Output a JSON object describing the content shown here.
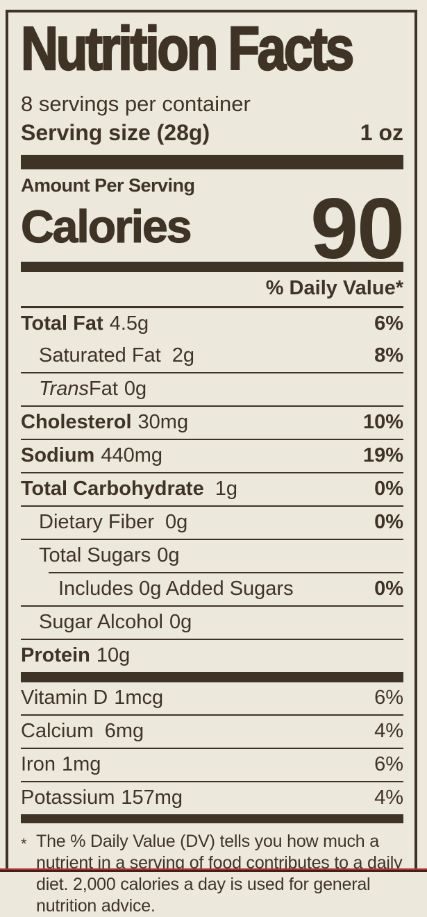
{
  "label": {
    "title": "Nutrition Facts",
    "servings_per_container": "8 servings per container",
    "serving_size": {
      "label": "Serving size (28g)",
      "value": "1 oz"
    },
    "calories": {
      "heading": "Amount Per Serving",
      "label": "Calories",
      "value": "90"
    },
    "daily_value_header": "% Daily Value*",
    "nutrients": [
      {
        "name": "Total Fat",
        "amount": "4.5g",
        "dv": "6%"
      },
      {
        "name": "Saturated Fat",
        "amount": "2g",
        "dv": "8%"
      },
      {
        "name_italic": "Trans",
        "name": "Fat",
        "amount": "0g",
        "dv": ""
      },
      {
        "name": "Cholesterol",
        "amount": "30mg",
        "dv": "10%"
      },
      {
        "name": "Sodium",
        "amount": "440mg",
        "dv": "19%"
      },
      {
        "name": "Total Carbohydrate",
        "amount": "1g",
        "dv": "0%"
      },
      {
        "name": "Dietary Fiber",
        "amount": "0g",
        "dv": "0%"
      },
      {
        "name": "Total Sugars",
        "amount": "0g",
        "dv": ""
      },
      {
        "name": "Includes 0g Added Sugars",
        "amount": "",
        "dv": "0%"
      },
      {
        "name": "Sugar Alcohol",
        "amount": "0g",
        "dv": ""
      },
      {
        "name": "Protein",
        "amount": "10g",
        "dv": ""
      }
    ],
    "vitamins": [
      {
        "name": "Vitamin D",
        "amount": "1mcg",
        "dv": "6%"
      },
      {
        "name": "Calcium",
        "amount": "6mg",
        "dv": "4%"
      },
      {
        "name": "Iron",
        "amount": "1mg",
        "dv": "6%"
      },
      {
        "name": "Potassium",
        "amount": "157mg",
        "dv": "4%"
      }
    ],
    "footnote": {
      "marker": "*",
      "text": "The % Daily Value (DV) tells you how much a nutrient in a serving of food contributes to a daily diet. 2,000 calories a day is used for general nutrition advice."
    }
  },
  "colors": {
    "background": "#ECE8DC",
    "ink": "#3F3326",
    "bottom_line_red": "#A83A38",
    "bottom_strip_maroon": "#4A1D1C"
  }
}
